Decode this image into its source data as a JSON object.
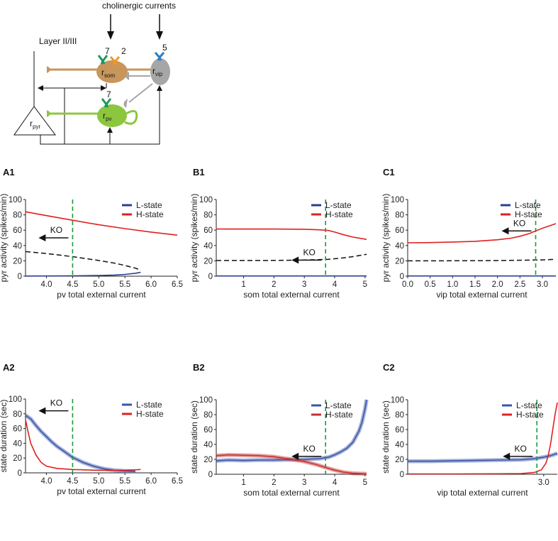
{
  "schematic": {
    "title": "cholinergic currents",
    "layer_label": "Layer II/III",
    "cells": [
      {
        "id": "som",
        "label_main": "r",
        "label_sub": "som",
        "color": "#c8955a"
      },
      {
        "id": "vip",
        "label_main": "r",
        "label_sub": "vip",
        "color": "#a6a6a6"
      },
      {
        "id": "pv",
        "label_main": "r",
        "label_sub": "pv",
        "color": "#8cc63f"
      },
      {
        "id": "pyr",
        "label_main": "r",
        "label_sub": "pyr",
        "color": "#ffffff"
      }
    ],
    "receptor_labels": [
      {
        "id": "som-green",
        "text": "7",
        "color": "#1a9a5a"
      },
      {
        "id": "som-orange",
        "text": "2",
        "color": "#f0962a"
      },
      {
        "id": "vip-blue",
        "text": "5",
        "color": "#2a7fc8"
      },
      {
        "id": "pv-green",
        "text": "7",
        "color": "#1a9a5a"
      }
    ]
  },
  "chart_data": [
    {
      "id": "A1",
      "panel_label": "A1",
      "type": "line",
      "xlabel": "pv total external current",
      "ylabel": "pyr activity (spikes/min)",
      "xlim": [
        3.6,
        6.5
      ],
      "ylim": [
        0,
        100
      ],
      "xticks": [
        4.0,
        4.5,
        5.0,
        5.5,
        6.0,
        6.5
      ],
      "xtick_labels": [
        "4.0",
        "4.5",
        "5.0",
        "5.5",
        "6.0",
        "6.5"
      ],
      "yticks": [
        0,
        20,
        40,
        60,
        80,
        100
      ],
      "ytick_labels": [
        "0",
        "20",
        "40",
        "60",
        "80",
        "100"
      ],
      "vline_x": 4.5,
      "ko_label": "KO",
      "ko_position": "left",
      "legend": [
        "L-state",
        "H-state"
      ],
      "series": [
        {
          "name": "L-state",
          "color": "#2b3f8f",
          "style": "solid",
          "band": false,
          "x": [
            3.6,
            4.0,
            4.5,
            5.0,
            5.3,
            5.5,
            5.7,
            5.8
          ],
          "y": [
            0.2,
            0.3,
            0.5,
            0.9,
            1.5,
            2.3,
            3.8,
            5.0
          ]
        },
        {
          "name": "H-state",
          "color": "#e02020",
          "style": "solid",
          "band": false,
          "x": [
            3.6,
            4.0,
            4.5,
            5.0,
            5.5,
            6.0,
            6.5
          ],
          "y": [
            84,
            79,
            73,
            67,
            62,
            57.5,
            53.5
          ]
        },
        {
          "name": "unstable",
          "color": "#111111",
          "style": "dashed",
          "band": false,
          "x": [
            3.6,
            4.0,
            4.5,
            5.0,
            5.3,
            5.5,
            5.7,
            5.8
          ],
          "y": [
            32,
            29.5,
            25.5,
            20.5,
            17,
            14,
            10.5,
            8
          ]
        }
      ]
    },
    {
      "id": "B1",
      "panel_label": "B1",
      "type": "line",
      "xlabel": "som total external current",
      "ylabel": "pyr activity (spikes/min)",
      "xlim": [
        0.1,
        5.05
      ],
      "ylim": [
        0,
        100
      ],
      "xticks": [
        1,
        2,
        3,
        4,
        5
      ],
      "xtick_labels": [
        "1",
        "2",
        "3",
        "4",
        "5"
      ],
      "yticks": [
        0,
        20,
        40,
        60,
        80,
        100
      ],
      "ytick_labels": [
        "0",
        "20",
        "40",
        "60",
        "80",
        "100"
      ],
      "vline_x": 3.7,
      "ko_label": "KO",
      "ko_position": "left",
      "legend": [
        "L-state",
        "H-state"
      ],
      "series": [
        {
          "name": "L-state",
          "color": "#2b3f8f",
          "style": "solid",
          "band": false,
          "x": [
            0.1,
            1,
            2,
            3,
            4,
            5.05
          ],
          "y": [
            0.3,
            0.3,
            0.3,
            0.3,
            0.3,
            0.3
          ]
        },
        {
          "name": "H-state",
          "color": "#e02020",
          "style": "solid",
          "band": false,
          "x": [
            0.1,
            1,
            2,
            3,
            3.5,
            3.8,
            4.0,
            4.3,
            4.6,
            5.05
          ],
          "y": [
            61.5,
            61.5,
            61.5,
            61.2,
            60.5,
            59.5,
            57.5,
            54,
            51,
            48
          ]
        },
        {
          "name": "unstable",
          "color": "#111111",
          "style": "dashed",
          "band": false,
          "x": [
            0.1,
            1,
            2,
            3,
            3.8,
            4.2,
            4.6,
            5.05
          ],
          "y": [
            20.5,
            20.5,
            20.6,
            21,
            22,
            23.5,
            25.5,
            28.5
          ]
        }
      ]
    },
    {
      "id": "C1",
      "panel_label": "C1",
      "type": "line",
      "xlabel": "vip total external current",
      "ylabel": "pyr activity (spikes/min)",
      "xlim": [
        0.0,
        3.3
      ],
      "ylim": [
        0,
        100
      ],
      "xticks": [
        0.0,
        0.5,
        1.0,
        1.5,
        2.0,
        2.5,
        3.0
      ],
      "xtick_labels": [
        "0.0",
        "0.5",
        "1.0",
        "1.5",
        "2.0",
        "2.5",
        "3.0"
      ],
      "yticks": [
        0,
        20,
        40,
        60,
        80,
        100
      ],
      "ytick_labels": [
        "0",
        "20",
        "40",
        "60",
        "80",
        "100"
      ],
      "vline_x": 2.85,
      "ko_label": "KO",
      "ko_position": "left",
      "legend": [
        "L-state",
        "H-state"
      ],
      "series": [
        {
          "name": "L-state",
          "color": "#2b3f8f",
          "style": "solid",
          "band": false,
          "x": [
            0.0,
            1.0,
            2.0,
            3.0,
            3.3
          ],
          "y": [
            0.3,
            0.3,
            0.3,
            0.3,
            0.3
          ]
        },
        {
          "name": "H-state",
          "color": "#e02020",
          "style": "solid",
          "band": false,
          "x": [
            0.0,
            0.5,
            1.0,
            1.5,
            2.0,
            2.3,
            2.5,
            2.7,
            2.85,
            3.0,
            3.15,
            3.3
          ],
          "y": [
            43.5,
            43.8,
            44.5,
            45.5,
            47.5,
            49.5,
            52,
            55.5,
            59,
            62.5,
            65.5,
            68.5
          ]
        },
        {
          "name": "unstable",
          "color": "#111111",
          "style": "dashed",
          "band": false,
          "x": [
            0.0,
            1.0,
            2.0,
            3.0,
            3.3
          ],
          "y": [
            20,
            20.1,
            20.4,
            21.2,
            22
          ]
        }
      ]
    },
    {
      "id": "A2",
      "panel_label": "A2",
      "type": "line",
      "xlabel": "pv total external current",
      "ylabel": "state duration (sec)",
      "xlim": [
        3.6,
        6.5
      ],
      "ylim": [
        0,
        100
      ],
      "xticks": [
        4.0,
        4.5,
        5.0,
        5.5,
        6.0,
        6.5
      ],
      "xtick_labels": [
        "4.0",
        "4.5",
        "5.0",
        "5.5",
        "6.0",
        "6.5"
      ],
      "yticks": [
        0,
        20,
        40,
        60,
        80,
        100
      ],
      "ytick_labels": [
        "0",
        "20",
        "40",
        "60",
        "80",
        "100"
      ],
      "vline_x": 4.5,
      "ko_label": "KO",
      "ko_position": "upper-left",
      "legend": [
        "L-state",
        "H-state"
      ],
      "series": [
        {
          "name": "L-state",
          "color": "#3a54a8",
          "style": "solid",
          "band": true,
          "x": [
            3.6,
            3.7,
            3.8,
            3.9,
            4.0,
            4.1,
            4.2,
            4.3,
            4.4,
            4.5,
            4.7,
            4.9,
            5.1,
            5.3,
            5.5,
            5.7
          ],
          "y": [
            78,
            73,
            64,
            56,
            49,
            42,
            36,
            31,
            26,
            21,
            14,
            9,
            5.5,
            3.5,
            2.5,
            2
          ]
        },
        {
          "name": "H-state",
          "color": "#e02020",
          "style": "solid",
          "band": false,
          "x": [
            3.6,
            3.65,
            3.7,
            3.8,
            3.9,
            4.0,
            4.2,
            4.5,
            5.0,
            5.5,
            5.8
          ],
          "y": [
            72,
            55,
            40,
            24,
            14,
            9,
            6,
            4.5,
            3.5,
            3.5,
            4.5
          ]
        }
      ]
    },
    {
      "id": "B2",
      "panel_label": "B2",
      "type": "line",
      "xlabel": "som total external current",
      "ylabel": "state duration (sec)",
      "xlim": [
        0.1,
        5.05
      ],
      "ylim": [
        0,
        100
      ],
      "xticks": [
        1,
        2,
        3,
        4,
        5
      ],
      "xtick_labels": [
        "1",
        "2",
        "3",
        "4",
        "5"
      ],
      "yticks": [
        0,
        20,
        40,
        60,
        80,
        100
      ],
      "ytick_labels": [
        "0",
        "20",
        "40",
        "60",
        "80",
        "100"
      ],
      "vline_x": 3.7,
      "ko_label": "KO",
      "ko_position": "left",
      "legend": [
        "L-state",
        "H-state"
      ],
      "series": [
        {
          "name": "L-state",
          "color": "#3a54a8",
          "style": "solid",
          "band": true,
          "x": [
            0.1,
            0.5,
            1.0,
            1.5,
            2.0,
            2.5,
            3.0,
            3.5,
            3.8,
            4.0,
            4.2,
            4.4,
            4.6,
            4.8,
            4.9,
            5.0,
            5.05
          ],
          "y": [
            18,
            19,
            18.5,
            19,
            19,
            19.5,
            20,
            21,
            23,
            26,
            30,
            35,
            43,
            58,
            70,
            88,
            100
          ]
        },
        {
          "name": "H-state",
          "color": "#c83030",
          "style": "solid",
          "band": true,
          "x": [
            0.1,
            0.5,
            1.0,
            1.5,
            2.0,
            2.5,
            3.0,
            3.4,
            3.7,
            4.0,
            4.3,
            4.6,
            5.05
          ],
          "y": [
            25,
            26,
            25.5,
            25,
            23.5,
            20.5,
            17,
            13,
            9,
            5.5,
            2.8,
            1.3,
            0.6
          ]
        }
      ]
    },
    {
      "id": "C2",
      "panel_label": "C2",
      "type": "line",
      "xlabel": "vip total external current",
      "ylabel": "state duration (sec)",
      "xlim": [
        0.0,
        3.3
      ],
      "ylim": [
        0,
        100
      ],
      "xticks": [
        3.0
      ],
      "xtick_labels": [
        "3.0"
      ],
      "yticks": [
        0,
        20,
        40,
        60,
        80,
        100
      ],
      "ytick_labels": [
        "0",
        "20",
        "40",
        "60",
        "80",
        "100"
      ],
      "vline_x": 2.85,
      "ko_label": "KO",
      "ko_position": "left",
      "legend": [
        "L-state",
        "H-state"
      ],
      "series": [
        {
          "name": "L-state",
          "color": "#3a54a8",
          "style": "solid",
          "band": true,
          "x": [
            0.0,
            0.5,
            1.0,
            1.5,
            2.0,
            2.5,
            2.8,
            3.0,
            3.15,
            3.3
          ],
          "y": [
            17.5,
            17.5,
            18,
            18.5,
            19,
            19.5,
            21,
            23,
            25,
            28
          ]
        },
        {
          "name": "H-state",
          "color": "#e02020",
          "style": "solid",
          "band": false,
          "x": [
            0.0,
            1.0,
            2.0,
            2.5,
            2.8,
            2.95,
            3.05,
            3.1,
            3.15,
            3.2,
            3.25,
            3.3
          ],
          "y": [
            0.5,
            0.5,
            0.7,
            1,
            2.5,
            6,
            15,
            25,
            40,
            60,
            80,
            96
          ]
        }
      ]
    }
  ]
}
